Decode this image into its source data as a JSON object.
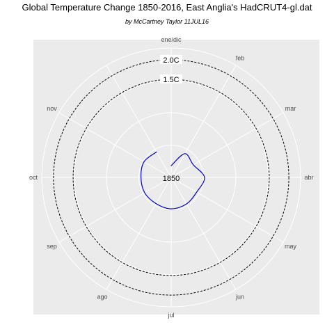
{
  "chart_data": {
    "type": "line",
    "coordinate_system": "polar",
    "title": "Global Temperature Change 1850-2016, East Anglia's HadCRUT4-gl.dat",
    "subtitle": "by McCartney Taylor 11JUL16",
    "center_label": "1850",
    "months": [
      "ene/dic",
      "feb",
      "mar",
      "abr",
      "may",
      "jun",
      "jul",
      "ago",
      "sep",
      "oct",
      "nov"
    ],
    "reference_circles": [
      {
        "label": "2.0C",
        "value": 2.0,
        "style": "dashed"
      },
      {
        "label": "1.5C",
        "value": 1.5,
        "style": "dashed"
      }
    ],
    "radial_range": [
      -1,
      2.3
    ],
    "grid": true,
    "colors": {
      "panel": "#EBEBEB",
      "grid": "#FFFFFF",
      "series": "#0000CD",
      "reference": "#000000",
      "month_label": "#4D4D4D"
    },
    "series": [
      {
        "year": "1850",
        "values": [
          {
            "month": "ene",
            "value": -0.7
          },
          {
            "month": "feb",
            "value": -0.3
          },
          {
            "month": "mar",
            "value": -0.35
          },
          {
            "month": "abr",
            "value": -0.15
          },
          {
            "month": "may",
            "value": -0.25
          },
          {
            "month": "jun",
            "value": -0.22
          },
          {
            "month": "jul",
            "value": -0.2
          },
          {
            "month": "ago",
            "value": -0.23
          },
          {
            "month": "sep",
            "value": -0.22
          },
          {
            "month": "oct",
            "value": -0.23
          },
          {
            "month": "nov",
            "value": -0.2
          },
          {
            "month": "dic",
            "value": -0.25
          }
        ]
      }
    ]
  }
}
